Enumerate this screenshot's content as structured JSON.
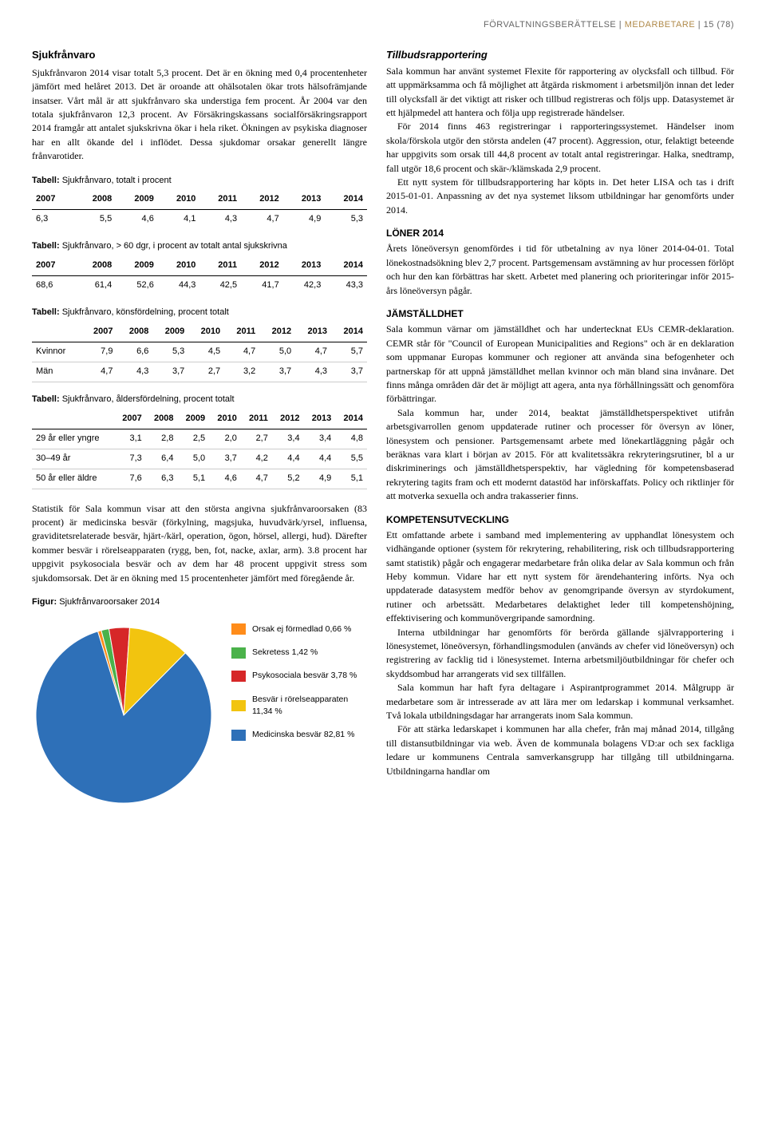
{
  "header": {
    "section": "FÖRVALTNINGSBERÄTTELSE",
    "subsection": "MEDARBETARE",
    "pagenum": "15 (78)"
  },
  "left": {
    "title": "Sjukfrånvaro",
    "p1": "Sjukfrånvaron 2014 visar totalt 5,3 procent. Det är en ökning med 0,4 procentenheter jämfört med helåret 2013. Det är oroande att ohälsotalen ökar trots hälsofrämjande insatser. Vårt mål är att sjukfrånvaro ska understiga fem procent. År 2004 var den totala sjukfrånvaron 12,3 procent. Av Försäkringskassans socialförsäkringsrapport 2014 framgår att antalet sjukskrivna ökar i hela riket. Ökningen av psykiska diagnoser har en allt ökande del i inflödet. Dessa sjukdomar orsakar generellt längre frånvarotider.",
    "table1_caption": "Tabell:  Sjukfrånvaro, totalt i procent",
    "table2_caption": "Tabell:  Sjukfrånvaro, > 60 dgr, i procent av totalt antal sjukskrivna",
    "table3_caption": "Tabell:  Sjukfrånvaro, könsfördelning, procent totalt",
    "table4_caption": "Tabell:  Sjukfrånvaro, åldersfördelning, procent totalt",
    "years": [
      "2007",
      "2008",
      "2009",
      "2010",
      "2011",
      "2012",
      "2013",
      "2014"
    ],
    "row_total": [
      "6,3",
      "5,5",
      "4,6",
      "4,1",
      "4,3",
      "4,7",
      "4,9",
      "5,3"
    ],
    "row_60dgr": [
      "68,6",
      "61,4",
      "52,6",
      "44,3",
      "42,5",
      "41,7",
      "42,3",
      "43,3"
    ],
    "row_kvinnor_label": "Kvinnor",
    "row_kvinnor": [
      "7,9",
      "6,6",
      "5,3",
      "4,5",
      "4,7",
      "5,0",
      "4,7",
      "5,7"
    ],
    "row_man_label": "Män",
    "row_man": [
      "4,7",
      "4,3",
      "3,7",
      "2,7",
      "3,2",
      "3,7",
      "4,3",
      "3,7"
    ],
    "row_age1_label": "29 år eller yngre",
    "row_age1": [
      "3,1",
      "2,8",
      "2,5",
      "2,0",
      "2,7",
      "3,4",
      "3,4",
      "4,8"
    ],
    "row_age2_label": "30–49 år",
    "row_age2": [
      "7,3",
      "6,4",
      "5,0",
      "3,7",
      "4,2",
      "4,4",
      "4,4",
      "5,5"
    ],
    "row_age3_label": "50 år eller äldre",
    "row_age3": [
      "7,6",
      "6,3",
      "5,1",
      "4,6",
      "4,7",
      "5,2",
      "4,9",
      "5,1"
    ],
    "p2": "Statistik för Sala kommun visar att den största angivna sjukfrånvaroorsaken (83 procent) är medicinska besvär (förkylning, magsjuka, huvudvärk/yrsel, influensa, graviditetsrelaterade besvär, hjärt-/kärl, operation, ögon, hörsel, allergi, hud). Därefter kommer besvär i rörelseapparaten (rygg, ben, fot, nacke, axlar, arm). 3.8 procent har uppgivit psykosociala besvär och av dem har 48 procent uppgivit stress som sjukdomsorsak. Det är en ökning med 15 procentenheter jämfört med föregående år.",
    "figure_caption": "Figur:  Sjukfrånvaroorsaker 2014",
    "pie": {
      "colors": {
        "orsak_ej": "#ff8c1a",
        "sekretess": "#4ab24a",
        "psyko": "#d62728",
        "rorelse": "#f2c40f",
        "medicinska": "#2e70b8"
      },
      "labels": {
        "orsak_ej": "Orsak ej förmedlad 0,66 %",
        "sekretess": "Sekretess 1,42 %",
        "psyko": "Psykosociala besvär 3,78 %",
        "rorelse": "Besvär i rörelseapparaten 11,34 %",
        "medicinska": "Medicinska besvär 82,81 %"
      },
      "values": {
        "orsak_ej": 0.66,
        "sekretess": 1.42,
        "psyko": 3.78,
        "rorelse": 11.34,
        "medicinska": 82.81
      }
    }
  },
  "right": {
    "tillbud_title": "Tillbudsrapportering",
    "tillbud_p1": "Sala kommun har använt systemet Flexite för rapportering av olycksfall och tillbud. För att uppmärksamma och få möjlighet att åtgärda riskmoment i arbetsmiljön innan det leder till olycksfall är det viktigt att risker och tillbud registreras och följs upp. Datasystemet är ett hjälpmedel att hantera och följa upp registrerade händelser.",
    "tillbud_p2": "För 2014 finns 463 registreringar i rapporteringssystemet. Händelser inom skola/förskola utgör den största andelen (47 procent). Aggression, otur, felaktigt beteende har uppgivits som orsak till 44,8 procent av totalt antal registreringar. Halka, snedtramp, fall utgör 18,6 procent och skär-/klämskada 2,9 procent.",
    "tillbud_p3": "Ett nytt system för tillbudsrapportering har köpts in. Det heter LISA och tas i drift 2015-01-01. Anpassning av det nya systemet liksom utbildningar har genomförts under 2014.",
    "loner_title": "LÖNER 2014",
    "loner_p1": "Årets löneöversyn genomfördes i tid för utbetalning av nya löner 2014-04-01. Total lönekostnadsökning blev 2,7 procent. Partsgemensam avstämning av hur processen förlöpt och hur den kan förbättras har skett. Arbetet med planering och prioriteringar inför 2015-års löneöversyn pågår.",
    "jamstalldhet_title": "JÄMSTÄLLDHET",
    "jamstalldhet_p1": "Sala kommun värnar om jämställdhet och har undertecknat EUs CEMR-deklaration. CEMR står för \"Council of European Municipalities and Regions\" och är en deklaration som uppmanar Europas kommuner och regioner att använda sina befogenheter och partnerskap för att uppnå jämställdhet mellan kvinnor och män bland sina invånare. Det finns många områden där det är möjligt att agera, anta nya förhållningssätt och genomföra förbättringar.",
    "jamstalldhet_p2": "Sala kommun har, under 2014, beaktat jämställdhetsperspektivet utifrån arbetsgivarrollen genom uppdaterade rutiner och processer för översyn av löner, lönesystem och pensioner. Partsgemensamt arbete med lönekartläggning pågår och beräknas vara klart i början av 2015. För att kvalitetssäkra rekryteringsrutiner, bl a ur diskriminerings och jämställdhetsperspektiv, har vägledning för kompetensbaserad rekrytering tagits fram och ett modernt datastöd har införskaffats. Policy och riktlinjer för att motverka sexuella och andra trakasserier finns.",
    "kompetens_title": "KOMPETENSUTVECKLING",
    "kompetens_p1": "Ett omfattande arbete i samband med implementering av upphandlat lönesystem och vidhängande optioner (system för rekrytering, rehabilitering, risk och tillbudsrapportering samt statistik) pågår och engagerar medarbetare från olika delar av Sala kommun och från Heby kommun. Vidare har ett nytt system för ärendehantering införts. Nya och uppdaterade datasystem medför behov av genomgripande översyn av styrdokument, rutiner och arbetssätt. Medarbetares delaktighet leder till kompetenshöjning, effektivisering och kommunövergripande samordning.",
    "kompetens_p2": "Interna utbildningar har genomförts för berörda gällande självrapportering i lönesystemet, löneöversyn, förhandlingsmodulen (används av chefer vid löneöversyn) och registrering av facklig tid i lönesystemet. Interna arbetsmiljöutbildningar för chefer och skyddsombud har arrangerats vid sex tillfällen.",
    "kompetens_p3": "Sala kommun har haft fyra deltagare i Aspirantprogrammet 2014. Målgrupp är medarbetare som är intresserade av att lära mer om ledarskap i kommunal verksamhet. Två lokala utbildningsdagar har arrangerats inom Sala kommun.",
    "kompetens_p4": "För att stärka ledarskapet i kommunen har alla chefer, från maj månad 2014, tillgång till distansutbildningar via web. Även de kommunala bolagens VD:ar och sex fackliga ledare ur kommunens Centrala samverkansgrupp har tillgång till utbildningarna. Utbildningarna handlar om"
  }
}
